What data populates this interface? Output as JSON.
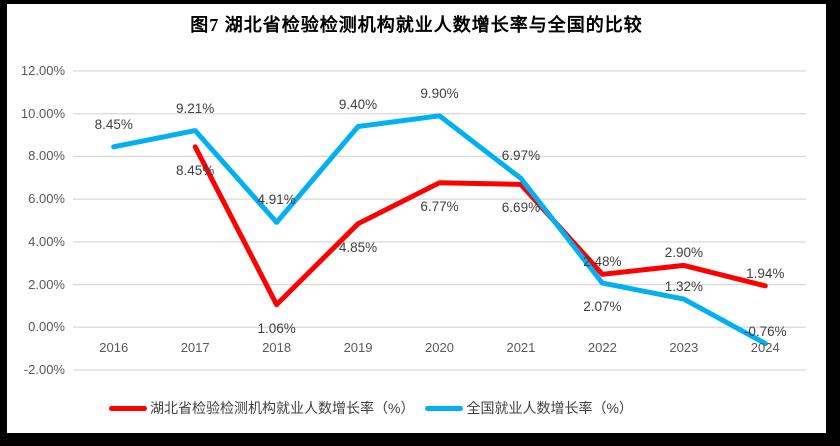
{
  "title": "图7 湖北省检验检测机构就业人数增长率与全国的比较",
  "chart_data": {
    "type": "line",
    "title": "图7 湖北省检验检测机构就业人数增长率与全国的比较",
    "categories": [
      "2016",
      "2017",
      "2018",
      "2019",
      "2020",
      "2021",
      "2022",
      "2023",
      "2024"
    ],
    "series": [
      {
        "name": "湖北省检验检测机构就业人数增长率（%）",
        "color": "#FF0000",
        "values": [
          null,
          8.45,
          1.06,
          4.85,
          6.77,
          6.69,
          2.48,
          2.9,
          1.94
        ],
        "labels": [
          null,
          "8.45%",
          "1.06%",
          "4.85%",
          "6.77%",
          "6.69%",
          "2.48%",
          "2.90%",
          "1.94%"
        ],
        "label_side": [
          null,
          "below",
          "below",
          "below",
          "below",
          "below",
          "above-close",
          "above-close",
          "above-close"
        ]
      },
      {
        "name": "全国就业人数增长率（%）",
        "color": "#00B0F0",
        "values": [
          8.45,
          9.21,
          4.91,
          9.4,
          9.9,
          6.97,
          2.07,
          1.32,
          -0.76
        ],
        "labels": [
          "8.45%",
          "9.21%",
          "4.91%",
          "9.40%",
          "9.90%",
          "6.97%",
          "2.07%",
          "1.32%",
          "-0.76%"
        ],
        "label_side": [
          "above",
          "above",
          "above",
          "above",
          "above",
          "above",
          "below",
          "above-close",
          "above-close"
        ]
      }
    ],
    "y_axis": {
      "min": -2,
      "max": 12,
      "tick_labels": [
        "12.00%",
        "10.00%",
        "8.00%",
        "6.00%",
        "4.00%",
        "2.00%",
        "0.00%",
        "-2.00%"
      ],
      "grid": true,
      "grid_color": "#D9D9D9"
    },
    "legend_position": "bottom",
    "xlabel": "",
    "ylabel": ""
  },
  "legend": {
    "items": [
      {
        "label": "湖北省检验检测机构就业人数增长率（%）",
        "color": "#FF0000"
      },
      {
        "label": "全国就业人数增长率（%）",
        "color": "#00B0F0"
      }
    ]
  },
  "colors": {
    "frame": "#000000",
    "background": "#FFFFFF",
    "tick_text": "#595959",
    "data_label_text": "#3F3F3F",
    "title_text": "#000000"
  }
}
